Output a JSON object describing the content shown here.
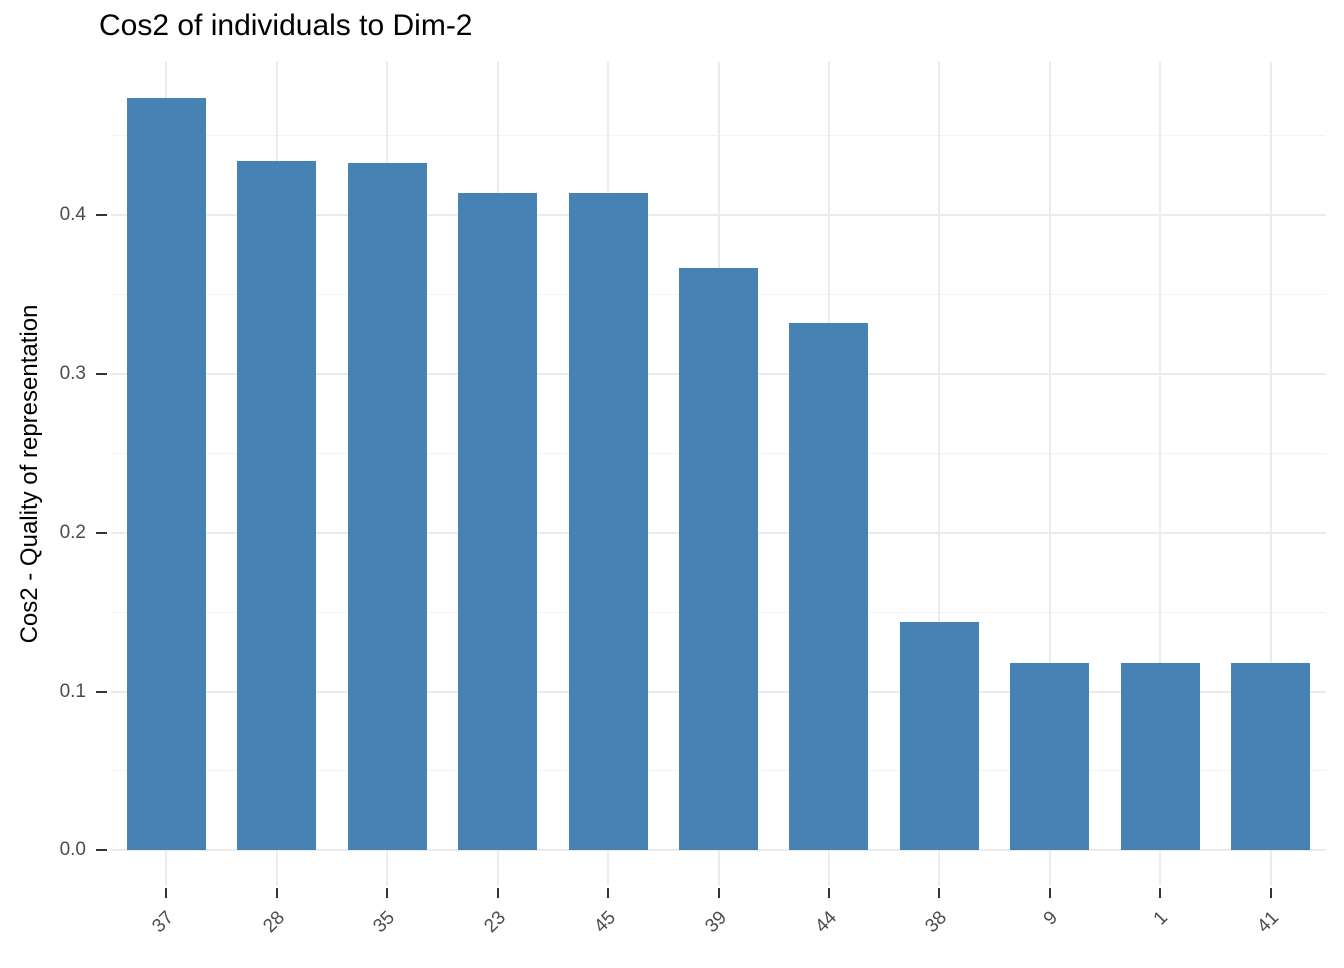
{
  "title": "Cos2 of individuals to Dim-2",
  "y_axis": {
    "label": "Cos2 - Quality of representation",
    "tick_labels": [
      "0.0",
      "0.1",
      "0.2",
      "0.3",
      "0.4"
    ]
  },
  "x_axis": {
    "tick_labels": [
      "37",
      "28",
      "35",
      "23",
      "45",
      "39",
      "44",
      "38",
      "9",
      "1",
      "41"
    ]
  },
  "colors": {
    "bar": "#4682B4",
    "grid_major": "#EBEBEB",
    "grid_minor": "#F3F3F3",
    "axis_text": "#4D4D4D",
    "tick_mark": "#333333",
    "title_text": "#000000",
    "background": "#FFFFFF"
  },
  "chart_data": {
    "type": "bar",
    "title": "Cos2 of individuals to Dim-2",
    "xlabel": "",
    "ylabel": "Cos2 - Quality of representation",
    "categories": [
      "37",
      "28",
      "35",
      "23",
      "45",
      "39",
      "44",
      "38",
      "9",
      "1",
      "41"
    ],
    "values": [
      0.474,
      0.434,
      0.433,
      0.414,
      0.414,
      0.367,
      0.332,
      0.144,
      0.118,
      0.118,
      0.118
    ],
    "yticks": [
      0.0,
      0.1,
      0.2,
      0.3,
      0.4
    ],
    "ytick_labels": [
      "0.0",
      "0.1",
      "0.2",
      "0.3",
      "0.4"
    ],
    "minor_yticks": [
      0.05,
      0.15,
      0.25,
      0.35,
      0.45
    ],
    "ylim": [
      0,
      0.497
    ],
    "grid": "major-and-minor-horizontal, major-vertical-at-categories",
    "legend": "none",
    "bar_color": "#4682B4",
    "x_label_angle": 45
  }
}
